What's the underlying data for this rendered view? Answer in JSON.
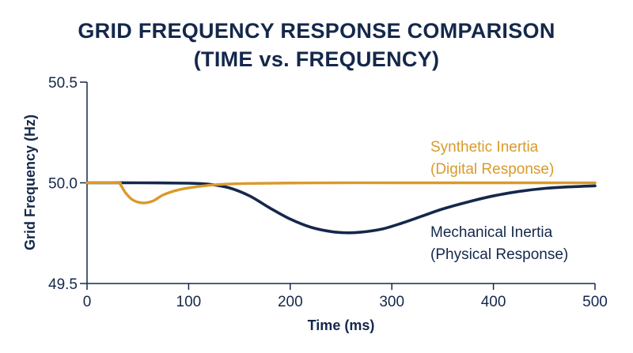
{
  "chart_data": {
    "type": "line",
    "title": "GRID FREQUENCY RESPONSE COMPARISON",
    "subtitle": "(TIME vs. FREQUENCY)",
    "xlabel": "Time (ms)",
    "ylabel": "Grid Frequency (Hz)",
    "xlim": [
      0,
      500
    ],
    "ylim": [
      49.5,
      50.5
    ],
    "x_ticks": [
      "0",
      "100",
      "200",
      "300",
      "400",
      "500"
    ],
    "y_ticks": [
      "49.5",
      "50.0",
      "50.5"
    ],
    "grid": false,
    "series": [
      {
        "name": "Synthetic Inertia (Digital Response)",
        "label_lines": [
          "Synthetic Inertia",
          "(Digital Response)"
        ],
        "color": "#d99a2b",
        "x": [
          0,
          30,
          33,
          38,
          45,
          55,
          65,
          75,
          90,
          110,
          130,
          160,
          200,
          250,
          300,
          400,
          500
        ],
        "y": [
          50.0,
          50.0,
          49.99,
          49.95,
          49.915,
          49.9,
          49.91,
          49.94,
          49.965,
          49.982,
          49.992,
          49.997,
          49.999,
          50.0,
          50.0,
          50.0,
          50.0
        ]
      },
      {
        "name": "Mechanical Inertia (Physical Response)",
        "label_lines": [
          "Mechanical Inertia",
          "(Physical Response)"
        ],
        "color": "#14284b",
        "x": [
          0,
          50,
          100,
          120,
          140,
          160,
          180,
          200,
          220,
          240,
          255,
          270,
          290,
          310,
          330,
          350,
          375,
          400,
          425,
          450,
          475,
          500
        ],
        "y": [
          50.0,
          50.0,
          49.998,
          49.993,
          49.975,
          49.935,
          49.875,
          49.82,
          49.78,
          49.758,
          49.752,
          49.755,
          49.77,
          49.8,
          49.835,
          49.87,
          49.905,
          49.935,
          49.957,
          49.972,
          49.98,
          49.985
        ]
      }
    ]
  }
}
